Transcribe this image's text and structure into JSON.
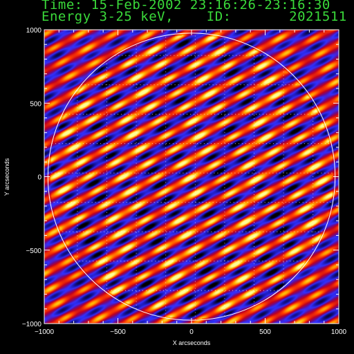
{
  "header": {
    "time_line": "Time: 15-Feb-2002 23:16:26-23:16:30",
    "energy_line": "Energy 3-25 keV,    ID:       2021511"
  },
  "chart_data": {
    "type": "heatmap",
    "xlabel": "X arcseconds",
    "ylabel": "Y arcseconds",
    "xlim": [
      -1000,
      1000
    ],
    "ylim": [
      -1000,
      1000
    ],
    "x_ticks": [
      -1000,
      -500,
      0,
      500,
      1000
    ],
    "y_ticks": [
      -1000,
      -500,
      0,
      500,
      1000
    ],
    "x_tick_labels": [
      "−1000",
      "−500",
      "0",
      "500",
      "1000"
    ],
    "y_tick_labels": [
      "−1000",
      "−500",
      "0",
      "500",
      "1000"
    ],
    "solar_limb_radius": 975,
    "grid_spacing": 200,
    "grid": "dotted",
    "pattern": "diagonal fringe modulation (back-projection)",
    "colormap": [
      "#000000",
      "#1414a0",
      "#3232ff",
      "#6a0a8c",
      "#c0001e",
      "#ff3c00",
      "#ffb400",
      "#ffff96"
    ]
  }
}
